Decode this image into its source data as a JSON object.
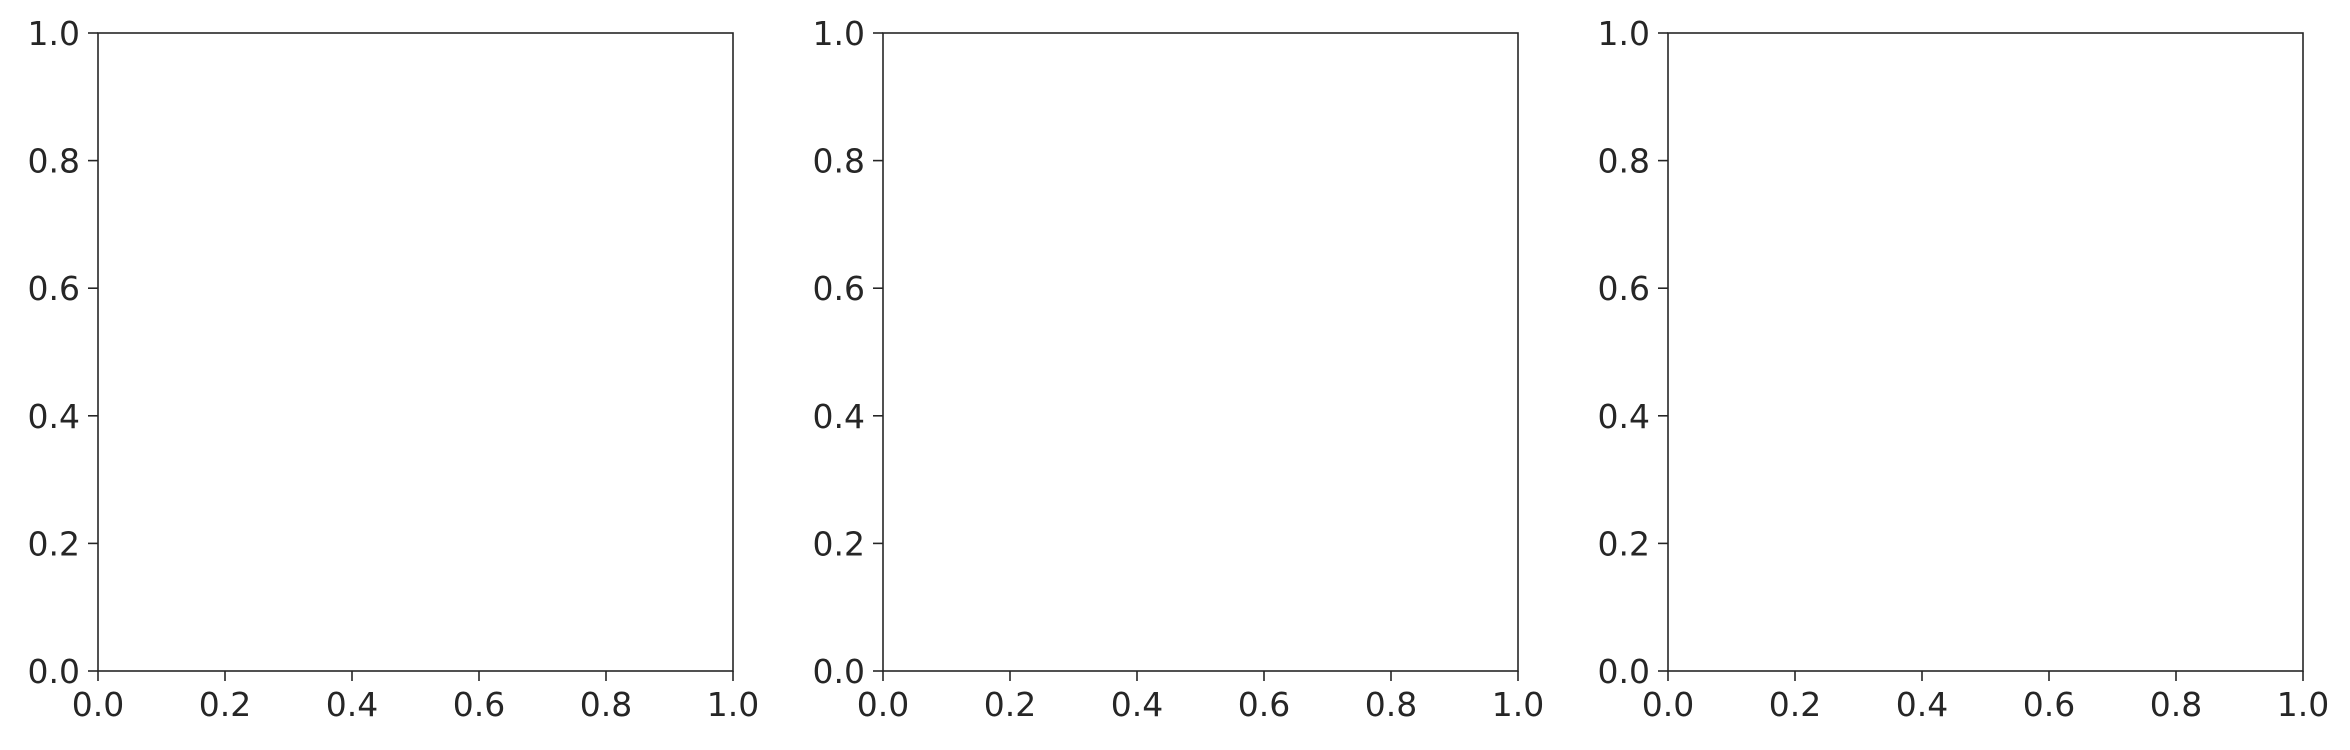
{
  "chart_data": [
    {
      "type": "scatter",
      "title": "",
      "xlabel": "",
      "ylabel": "",
      "series": [],
      "xlim": [
        0.0,
        1.0
      ],
      "ylim": [
        0.0,
        1.0
      ],
      "xticks": [
        "0.0",
        "0.2",
        "0.4",
        "0.6",
        "0.8",
        "1.0"
      ],
      "yticks": [
        "0.0",
        "0.2",
        "0.4",
        "0.6",
        "0.8",
        "1.0"
      ],
      "grid": false,
      "legend": "none"
    },
    {
      "type": "scatter",
      "title": "",
      "xlabel": "",
      "ylabel": "",
      "series": [],
      "xlim": [
        0.0,
        1.0
      ],
      "ylim": [
        0.0,
        1.0
      ],
      "xticks": [
        "0.0",
        "0.2",
        "0.4",
        "0.6",
        "0.8",
        "1.0"
      ],
      "yticks": [
        "0.0",
        "0.2",
        "0.4",
        "0.6",
        "0.8",
        "1.0"
      ],
      "grid": false,
      "legend": "none"
    },
    {
      "type": "scatter",
      "title": "",
      "xlabel": "",
      "ylabel": "",
      "series": [],
      "xlim": [
        0.0,
        1.0
      ],
      "ylim": [
        0.0,
        1.0
      ],
      "xticks": [
        "0.0",
        "0.2",
        "0.4",
        "0.6",
        "0.8",
        "1.0"
      ],
      "yticks": [
        "0.0",
        "0.2",
        "0.4",
        "0.6",
        "0.8",
        "1.0"
      ],
      "grid": false,
      "legend": "none"
    }
  ]
}
